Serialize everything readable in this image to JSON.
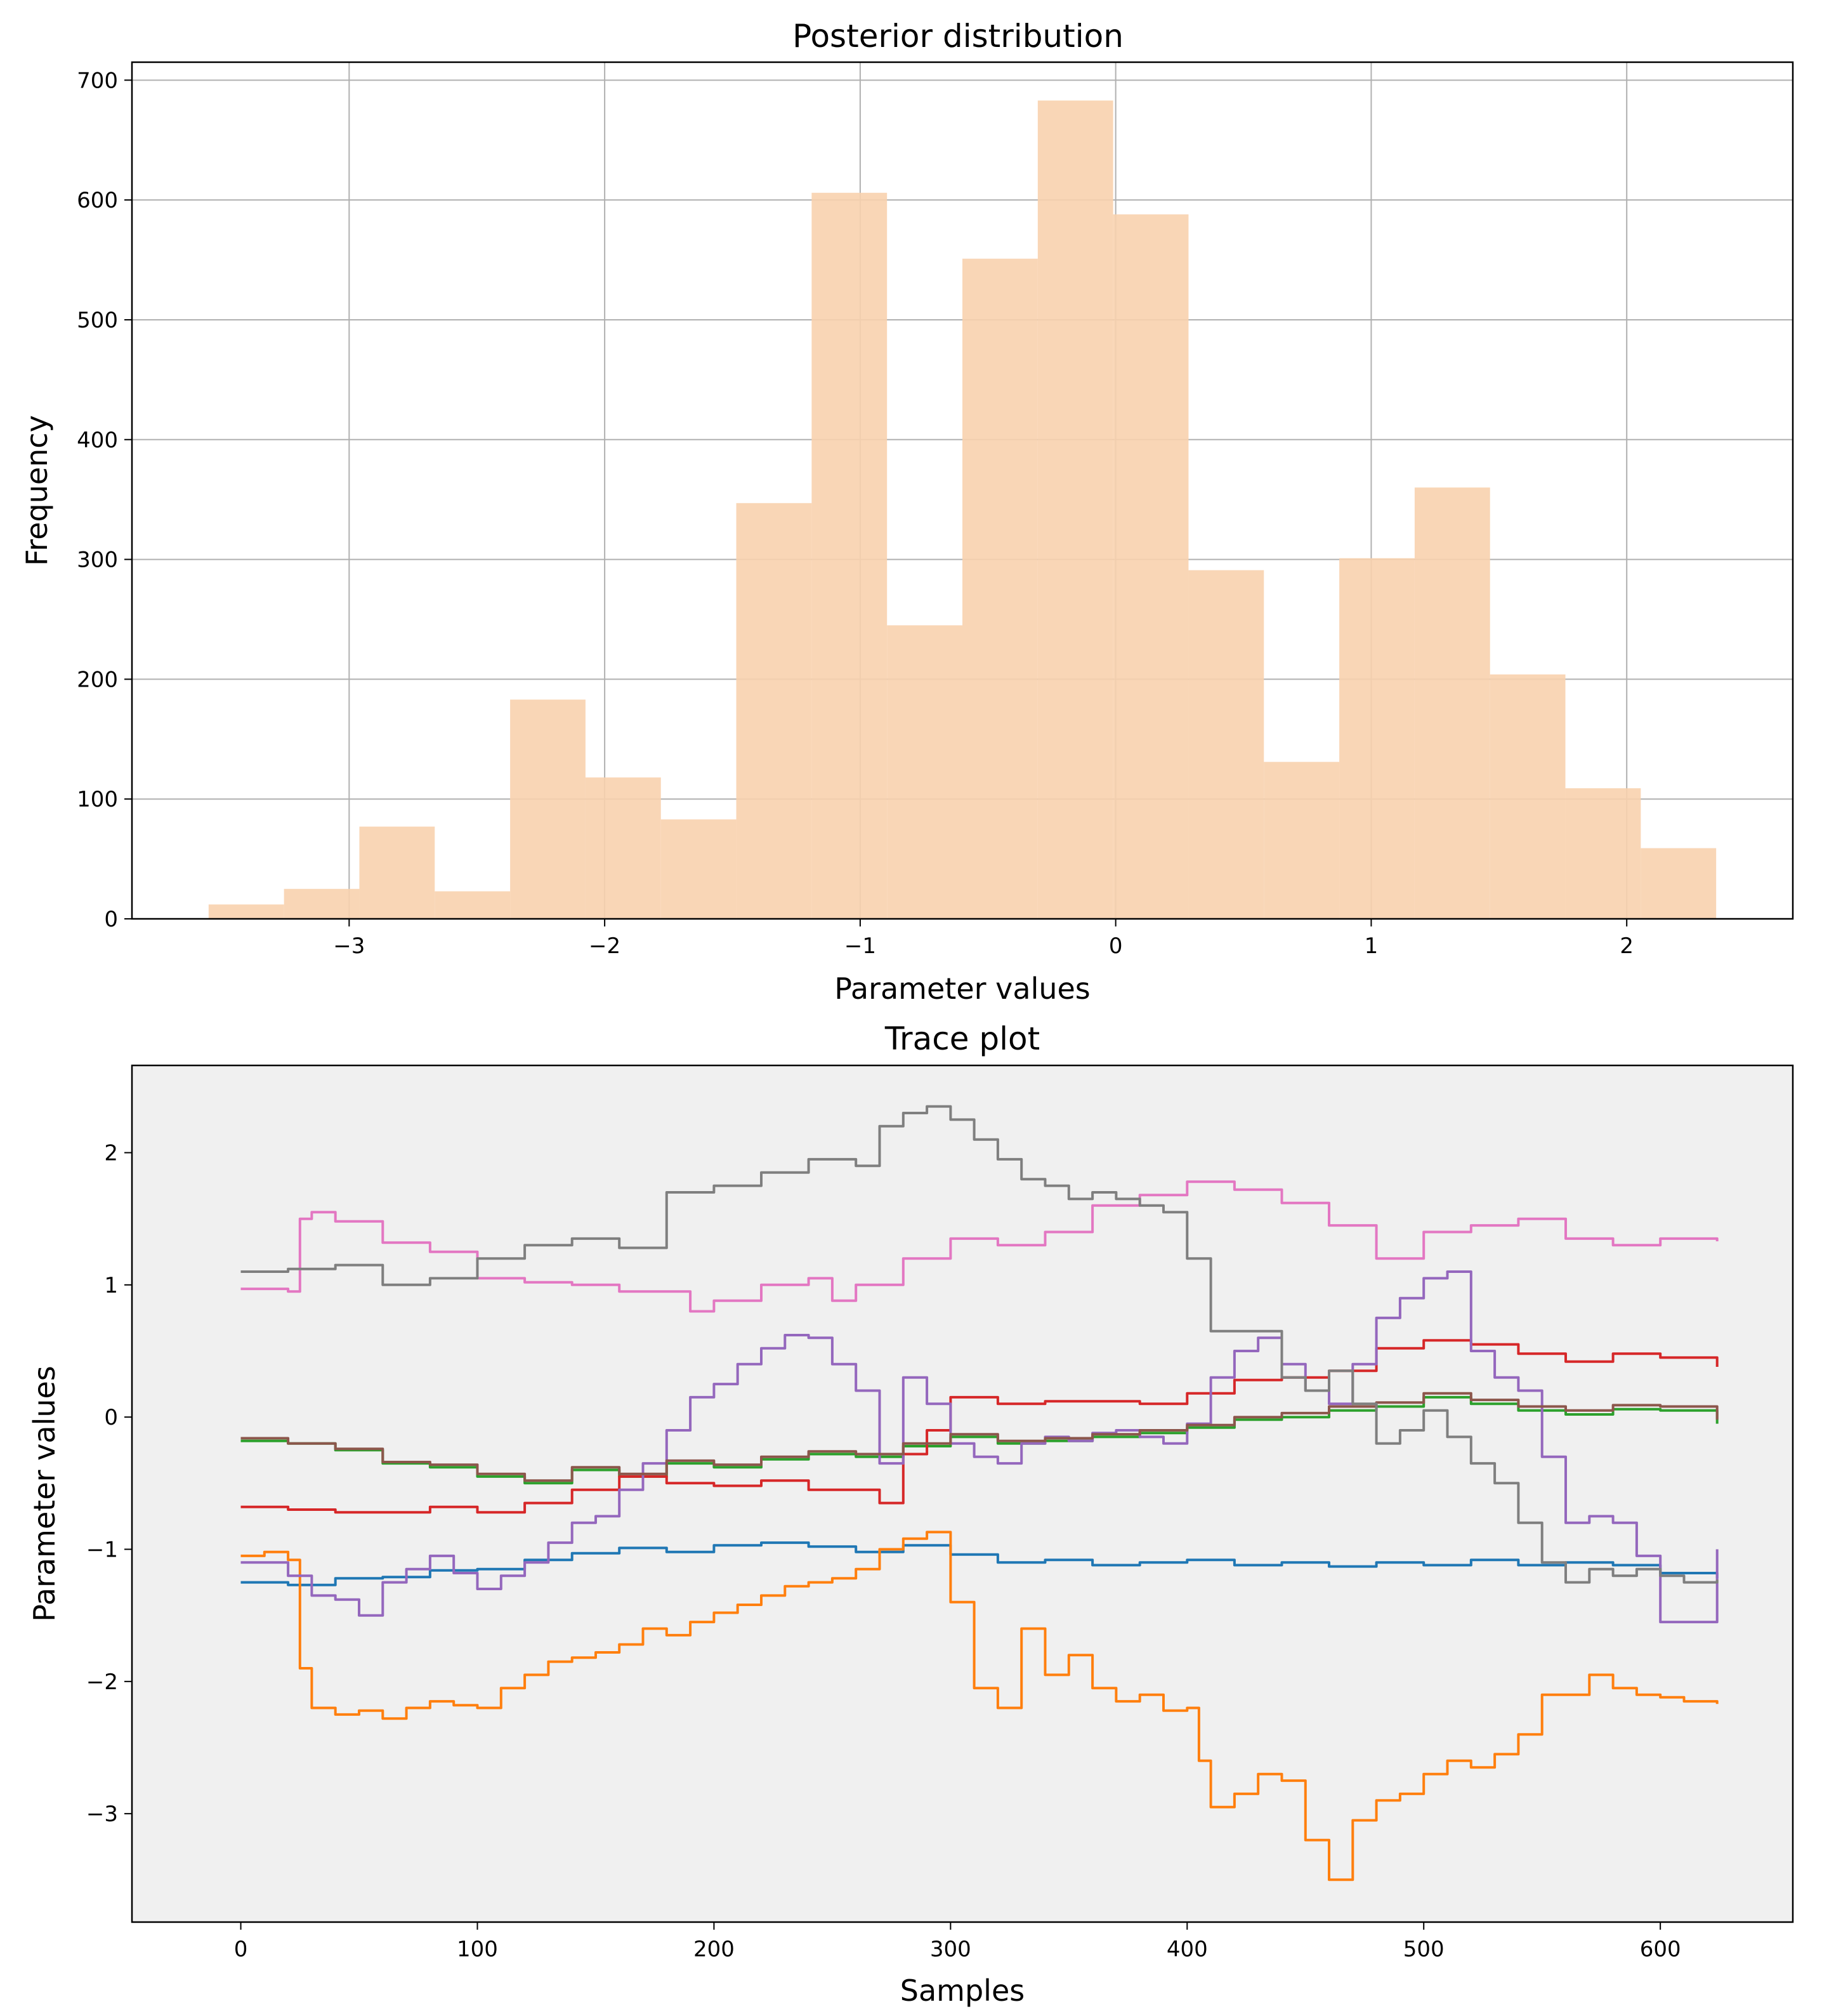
{
  "chart_data": [
    {
      "type": "bar",
      "subtype": "histogram",
      "title": "Posterior distribution",
      "xlabel": "Parameter values",
      "ylabel": "Frequency",
      "xlim": [
        -3.85,
        2.65
      ],
      "ylim": [
        0,
        715
      ],
      "xticks": [
        -3,
        -2,
        -1,
        0,
        1,
        2
      ],
      "yticks": [
        0,
        100,
        200,
        300,
        400,
        500,
        600,
        700
      ],
      "grid": true,
      "color": "#f8d1ae",
      "bin_edges": [
        -3.55,
        -3.255,
        -2.96,
        -2.665,
        -2.37,
        -2.075,
        -1.78,
        -1.485,
        -1.19,
        -0.895,
        -0.6,
        -0.305,
        -0.01,
        0.285,
        0.58,
        0.875,
        1.17,
        1.465,
        1.76,
        2.055,
        2.35
      ],
      "values": [
        12,
        25,
        77,
        23,
        183,
        118,
        83,
        347,
        606,
        245,
        551,
        683,
        588,
        291,
        131,
        301,
        360,
        204,
        109,
        59
      ]
    },
    {
      "type": "line",
      "title": "Trace plot",
      "xlabel": "Samples",
      "ylabel": "Parameter values",
      "xlim": [
        -46,
        656
      ],
      "ylim": [
        -3.82,
        2.66
      ],
      "xticks": [
        0,
        100,
        200,
        300,
        400,
        500,
        600
      ],
      "yticks": [
        -3,
        -2,
        -1,
        0,
        1,
        2
      ],
      "grid": false,
      "background": "#f0f0f0",
      "n_samples": 625,
      "series": [
        {
          "color": "#1f77b4",
          "x": [
            0,
            20,
            40,
            60,
            80,
            100,
            120,
            140,
            160,
            180,
            200,
            220,
            240,
            260,
            280,
            300,
            320,
            340,
            360,
            380,
            400,
            420,
            440,
            460,
            480,
            500,
            520,
            540,
            560,
            580,
            600,
            624
          ],
          "y": [
            -1.25,
            -1.27,
            -1.22,
            -1.21,
            -1.16,
            -1.15,
            -1.08,
            -1.03,
            -0.99,
            -1.02,
            -0.97,
            -0.95,
            -0.98,
            -1.02,
            -0.97,
            -1.04,
            -1.1,
            -1.08,
            -1.12,
            -1.1,
            -1.08,
            -1.12,
            -1.1,
            -1.13,
            -1.1,
            -1.12,
            -1.08,
            -1.12,
            -1.1,
            -1.12,
            -1.18,
            -1.22
          ]
        },
        {
          "color": "#ff7f0e",
          "x": [
            0,
            10,
            20,
            25,
            30,
            40,
            50,
            60,
            70,
            80,
            90,
            100,
            110,
            120,
            130,
            140,
            150,
            160,
            170,
            180,
            190,
            200,
            210,
            220,
            230,
            240,
            250,
            260,
            270,
            280,
            290,
            300,
            310,
            320,
            330,
            340,
            350,
            360,
            370,
            380,
            390,
            400,
            405,
            410,
            420,
            430,
            440,
            450,
            460,
            470,
            480,
            490,
            500,
            510,
            520,
            530,
            540,
            550,
            560,
            570,
            580,
            590,
            600,
            610,
            624
          ],
          "y": [
            -1.05,
            -1.02,
            -1.08,
            -1.9,
            -2.2,
            -2.25,
            -2.22,
            -2.28,
            -2.2,
            -2.15,
            -2.18,
            -2.2,
            -2.05,
            -1.95,
            -1.85,
            -1.82,
            -1.78,
            -1.72,
            -1.6,
            -1.65,
            -1.55,
            -1.48,
            -1.42,
            -1.35,
            -1.28,
            -1.25,
            -1.22,
            -1.15,
            -1.0,
            -0.92,
            -0.87,
            -1.4,
            -2.05,
            -2.2,
            -1.6,
            -1.95,
            -1.8,
            -2.05,
            -2.15,
            -2.1,
            -2.22,
            -2.2,
            -2.6,
            -2.95,
            -2.85,
            -2.7,
            -2.75,
            -3.2,
            -3.5,
            -3.05,
            -2.9,
            -2.85,
            -2.7,
            -2.6,
            -2.65,
            -2.55,
            -2.4,
            -2.1,
            -2.1,
            -1.95,
            -2.05,
            -2.1,
            -2.12,
            -2.15,
            -2.17
          ]
        },
        {
          "color": "#2ca02c",
          "x": [
            0,
            20,
            40,
            60,
            80,
            100,
            120,
            140,
            160,
            180,
            200,
            220,
            240,
            260,
            280,
            300,
            320,
            340,
            360,
            380,
            400,
            420,
            440,
            460,
            480,
            500,
            520,
            540,
            560,
            580,
            600,
            624
          ],
          "y": [
            -0.18,
            -0.2,
            -0.25,
            -0.35,
            -0.38,
            -0.45,
            -0.5,
            -0.4,
            -0.45,
            -0.35,
            -0.38,
            -0.32,
            -0.28,
            -0.3,
            -0.22,
            -0.15,
            -0.2,
            -0.18,
            -0.15,
            -0.12,
            -0.08,
            -0.02,
            0.0,
            0.05,
            0.08,
            0.15,
            0.1,
            0.05,
            0.02,
            0.06,
            0.05,
            -0.05
          ]
        },
        {
          "color": "#d62728",
          "x": [
            0,
            20,
            40,
            60,
            80,
            100,
            120,
            140,
            160,
            180,
            200,
            220,
            240,
            260,
            270,
            280,
            290,
            300,
            320,
            340,
            360,
            380,
            400,
            420,
            440,
            460,
            480,
            500,
            520,
            540,
            560,
            580,
            600,
            624
          ],
          "y": [
            -0.68,
            -0.7,
            -0.72,
            -0.72,
            -0.68,
            -0.72,
            -0.65,
            -0.55,
            -0.45,
            -0.5,
            -0.52,
            -0.48,
            -0.55,
            -0.55,
            -0.65,
            -0.28,
            -0.1,
            0.15,
            0.1,
            0.12,
            0.12,
            0.1,
            0.18,
            0.28,
            0.3,
            0.35,
            0.52,
            0.58,
            0.55,
            0.48,
            0.42,
            0.48,
            0.45,
            0.38
          ]
        },
        {
          "color": "#9467bd",
          "x": [
            0,
            20,
            30,
            40,
            50,
            60,
            70,
            80,
            90,
            100,
            110,
            120,
            130,
            140,
            150,
            160,
            170,
            180,
            190,
            200,
            210,
            220,
            230,
            240,
            250,
            260,
            270,
            280,
            290,
            300,
            310,
            320,
            330,
            340,
            350,
            360,
            370,
            380,
            390,
            400,
            410,
            420,
            430,
            440,
            450,
            460,
            470,
            480,
            490,
            500,
            510,
            520,
            530,
            540,
            550,
            560,
            570,
            580,
            590,
            600,
            610,
            624
          ],
          "y": [
            -1.1,
            -1.2,
            -1.35,
            -1.38,
            -1.5,
            -1.25,
            -1.15,
            -1.05,
            -1.18,
            -1.3,
            -1.2,
            -1.1,
            -0.95,
            -0.8,
            -0.75,
            -0.55,
            -0.35,
            -0.1,
            0.15,
            0.25,
            0.4,
            0.52,
            0.62,
            0.6,
            0.4,
            0.2,
            -0.35,
            0.3,
            0.1,
            -0.2,
            -0.3,
            -0.35,
            -0.2,
            -0.15,
            -0.18,
            -0.12,
            -0.1,
            -0.15,
            -0.2,
            -0.05,
            0.3,
            0.5,
            0.6,
            0.4,
            0.2,
            0.1,
            0.4,
            0.75,
            0.9,
            1.05,
            1.1,
            0.5,
            0.3,
            0.2,
            -0.3,
            -0.8,
            -0.75,
            -0.8,
            -1.05,
            -1.55,
            -1.55,
            -1.0
          ]
        },
        {
          "color": "#8c564b",
          "x": [
            0,
            20,
            40,
            60,
            80,
            100,
            120,
            140,
            160,
            180,
            200,
            220,
            240,
            260,
            280,
            300,
            320,
            340,
            360,
            380,
            400,
            420,
            440,
            460,
            480,
            500,
            520,
            540,
            560,
            580,
            600,
            624
          ],
          "y": [
            -0.16,
            -0.2,
            -0.24,
            -0.34,
            -0.36,
            -0.43,
            -0.48,
            -0.38,
            -0.43,
            -0.33,
            -0.36,
            -0.3,
            -0.26,
            -0.28,
            -0.2,
            -0.13,
            -0.18,
            -0.16,
            -0.13,
            -0.1,
            -0.06,
            0.0,
            0.03,
            0.08,
            0.11,
            0.18,
            0.13,
            0.08,
            0.05,
            0.09,
            0.08,
            -0.02
          ]
        },
        {
          "color": "#e377c2",
          "x": [
            0,
            20,
            25,
            30,
            40,
            60,
            80,
            100,
            120,
            140,
            160,
            180,
            190,
            200,
            220,
            240,
            250,
            260,
            280,
            300,
            320,
            340,
            360,
            380,
            400,
            420,
            440,
            460,
            480,
            500,
            520,
            540,
            560,
            580,
            600,
            624
          ],
          "y": [
            0.97,
            0.95,
            1.5,
            1.55,
            1.48,
            1.32,
            1.25,
            1.05,
            1.02,
            1.0,
            0.95,
            0.95,
            0.8,
            0.88,
            1.0,
            1.05,
            0.88,
            1.0,
            1.2,
            1.35,
            1.3,
            1.4,
            1.6,
            1.68,
            1.78,
            1.72,
            1.62,
            1.45,
            1.2,
            1.4,
            1.45,
            1.5,
            1.35,
            1.3,
            1.35,
            1.33
          ]
        },
        {
          "color": "#7f7f7f",
          "x": [
            0,
            20,
            40,
            60,
            80,
            100,
            120,
            140,
            160,
            180,
            200,
            220,
            240,
            260,
            270,
            280,
            290,
            300,
            310,
            320,
            330,
            340,
            350,
            360,
            370,
            380,
            390,
            400,
            410,
            420,
            430,
            440,
            450,
            460,
            470,
            480,
            490,
            500,
            510,
            520,
            530,
            540,
            550,
            560,
            570,
            580,
            590,
            600,
            610,
            624
          ],
          "y": [
            1.1,
            1.12,
            1.15,
            1.0,
            1.05,
            1.2,
            1.3,
            1.35,
            1.28,
            1.7,
            1.75,
            1.85,
            1.95,
            1.9,
            2.2,
            2.3,
            2.35,
            2.25,
            2.1,
            1.95,
            1.8,
            1.75,
            1.65,
            1.7,
            1.65,
            1.6,
            1.55,
            1.2,
            0.65,
            0.65,
            0.65,
            0.3,
            0.2,
            0.35,
            0.1,
            -0.2,
            -0.1,
            0.05,
            -0.15,
            -0.35,
            -0.5,
            -0.8,
            -1.1,
            -1.25,
            -1.15,
            -1.2,
            -1.15,
            -1.2,
            -1.25,
            -1.23
          ]
        }
      ]
    }
  ]
}
